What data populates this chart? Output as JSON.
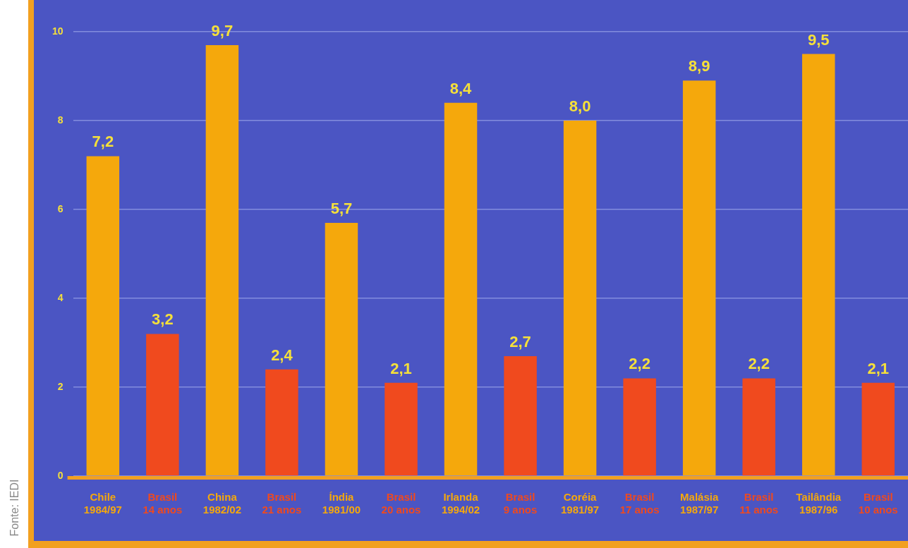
{
  "chart_data": {
    "type": "bar",
    "categories": [
      "Chile\n1984/97",
      "Brasil\n14 anos",
      "China\n1982/02",
      "Brasil\n21 anos",
      "Índia\n1981/00",
      "Brasil\n20 anos",
      "Irlanda\n1994/02",
      "Brasil\n9 anos",
      "Coréia\n1981/97",
      "Brasil\n17 anos",
      "Malásia\n1987/97",
      "Brasil\n11 anos",
      "Tailândia\n1987/96",
      "Brasil\n10 anos"
    ],
    "values": [
      7.2,
      3.2,
      9.7,
      2.4,
      5.7,
      2.1,
      8.4,
      2.7,
      8.0,
      2.2,
      8.9,
      2.2,
      9.5,
      2.1
    ],
    "value_labels": [
      "7,2",
      "3,2",
      "9,7",
      "2,4",
      "5,7",
      "2,1",
      "8,4",
      "2,7",
      "8,0",
      "2,2",
      "8,9",
      "2,2",
      "9,5",
      "2,1"
    ],
    "colors": [
      "#f5a80c",
      "#f04a1e",
      "#f5a80c",
      "#f04a1e",
      "#f5a80c",
      "#f04a1e",
      "#f5a80c",
      "#f04a1e",
      "#f5a80c",
      "#f04a1e",
      "#f5a80c",
      "#f04a1e",
      "#f5a80c",
      "#f04a1e"
    ],
    "ylim": [
      0,
      10
    ],
    "yticks": [
      0,
      2,
      4,
      6,
      8,
      10
    ],
    "grid": "y",
    "legend": false,
    "annotations": [
      "Fonte: IEDI"
    ]
  }
}
